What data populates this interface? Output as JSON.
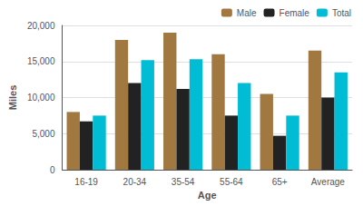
{
  "chart_data": {
    "type": "bar",
    "categories": [
      "16-19",
      "20-34",
      "35-54",
      "55-64",
      "65+",
      "Average"
    ],
    "series": [
      {
        "name": "Male",
        "color": "#a07840",
        "values": [
          8000,
          18000,
          19000,
          16000,
          10500,
          16500
        ]
      },
      {
        "name": "Female",
        "color": "#222222",
        "values": [
          6700,
          12000,
          11200,
          7500,
          4700,
          10000
        ]
      },
      {
        "name": "Total",
        "color": "#00bcd4",
        "values": [
          7500,
          15200,
          15300,
          12000,
          7500,
          13500
        ]
      }
    ],
    "xlabel": "Age",
    "ylabel": "Miles",
    "ylim": [
      0,
      20000
    ],
    "yticks": [
      0,
      {
        "value": 5000,
        "label": "5,000"
      },
      {
        "value": 10000,
        "label": "10,000"
      },
      {
        "value": 15000,
        "label": "15,000"
      },
      {
        "value": 20000,
        "label": "20,000"
      }
    ],
    "grid": true,
    "legend": "upper right"
  }
}
